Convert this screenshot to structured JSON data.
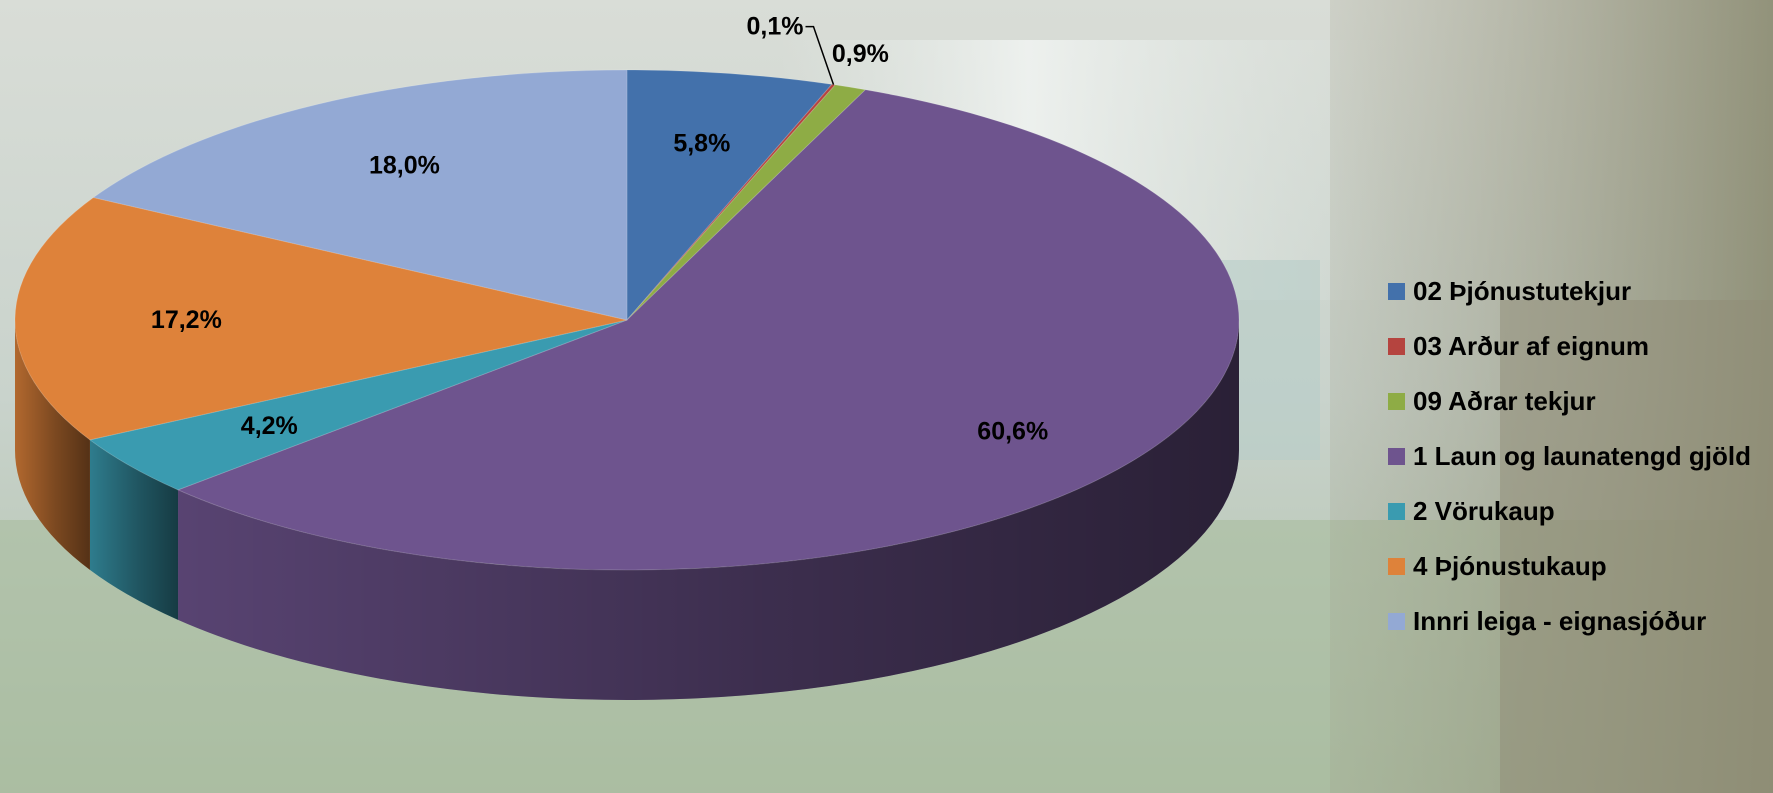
{
  "chart_data": {
    "type": "pie",
    "title": "",
    "style": "3d-exploded-off",
    "legend_position": "right",
    "slices": [
      {
        "label": "02 Þjónustutekjur",
        "value": 5.8,
        "display": "5,8%",
        "color": "#4371AB"
      },
      {
        "label": "03 Arður af eignum",
        "value": 0.1,
        "display": "0,1%",
        "color": "#B5443F"
      },
      {
        "label": "09 Aðrar tekjur",
        "value": 0.9,
        "display": "0,9%",
        "color": "#8EAC45"
      },
      {
        "label": "1 Laun og launatengd gjöld",
        "value": 60.6,
        "display": "60,6%",
        "color": "#6E548E"
      },
      {
        "label": "2 Vörukaup",
        "value": 4.2,
        "display": "4,2%",
        "color": "#3A9BB0"
      },
      {
        "label": "4 Þjónustukaup",
        "value": 17.2,
        "display": "17,2%",
        "color": "#DE823A"
      },
      {
        "label": "Innri leiga - eignasjóður",
        "value": 18.0,
        "display": "18,0%",
        "color": "#93A9D4"
      }
    ]
  }
}
